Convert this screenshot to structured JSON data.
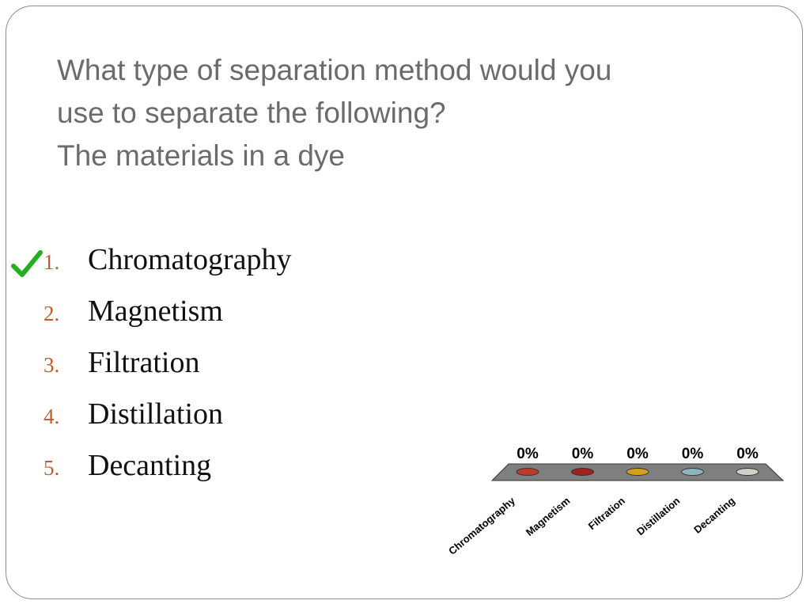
{
  "question": {
    "line1": "What type of separation method would you",
    "line2": "use to separate the following?",
    "line3": "The materials in a dye"
  },
  "answers": [
    {
      "number": "1.",
      "text": "Chromatography",
      "correct": true
    },
    {
      "number": "2.",
      "text": "Magnetism",
      "correct": false
    },
    {
      "number": "3.",
      "text": "Filtration",
      "correct": false
    },
    {
      "number": "4.",
      "text": "Distillation",
      "correct": false
    },
    {
      "number": "5.",
      "text": "Decanting",
      "correct": false
    }
  ],
  "icons": {
    "correct_marker": "checkmark-icon"
  },
  "colors": {
    "question_text": "#6d6a6a",
    "answer_number": "#c55a2b",
    "checkmark": "#22b022",
    "platform": "#7f7f7f"
  },
  "chart_data": {
    "type": "bar",
    "categories": [
      "Chromatography",
      "Magnetism",
      "Filtration",
      "Distillation",
      "Decanting"
    ],
    "values": [
      0,
      0,
      0,
      0,
      0
    ],
    "value_labels": [
      "0%",
      "0%",
      "0%",
      "0%",
      "0%"
    ],
    "colors": [
      "#c0392b",
      "#a32020",
      "#d4a017",
      "#8fb4bd",
      "#d0d0c8"
    ],
    "ylim": [
      0,
      100
    ],
    "grid": false,
    "title": "",
    "xlabel": "",
    "ylabel": ""
  }
}
